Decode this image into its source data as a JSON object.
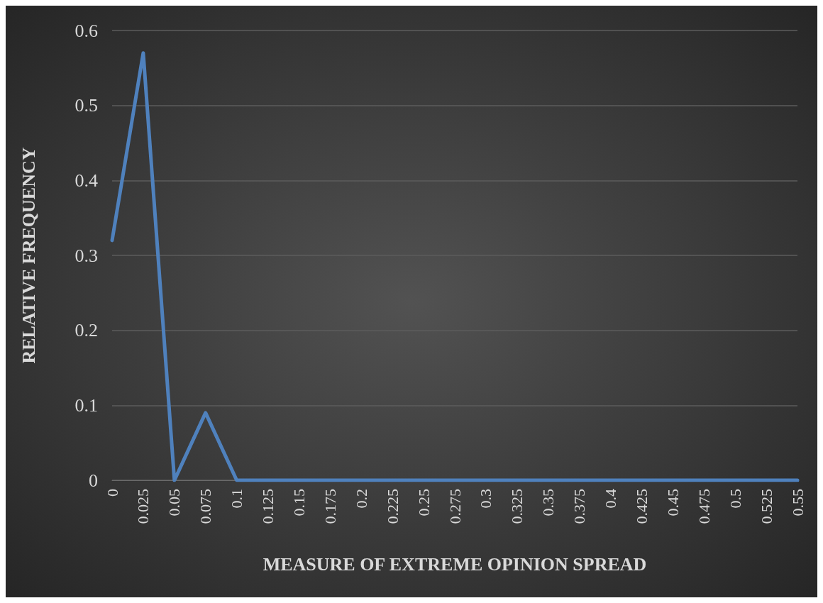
{
  "chart_data": {
    "type": "line",
    "xlabel": "MEASURE OF EXTREME OPINION SPREAD",
    "ylabel": "RELATIVE FREQUENCY",
    "categories": [
      "0",
      "0.025",
      "0.05",
      "0.075",
      "0.1",
      "0.125",
      "0.15",
      "0.175",
      "0.2",
      "0.225",
      "0.25",
      "0.275",
      "0.3",
      "0.325",
      "0.35",
      "0.375",
      "0.4",
      "0.425",
      "0.45",
      "0.475",
      "0.5",
      "0.525",
      "0.55"
    ],
    "series": [
      {
        "color": "#4f81bd",
        "values": [
          0.32,
          0.57,
          0,
          0.09,
          0,
          0,
          0,
          0,
          0,
          0,
          0,
          0,
          0,
          0,
          0,
          0,
          0,
          0,
          0,
          0,
          0,
          0,
          0
        ]
      }
    ],
    "ylim": [
      0,
      0.6
    ],
    "yticks": [
      0,
      0.1,
      0.2,
      0.3,
      0.4,
      0.5,
      0.6
    ],
    "grid": "y",
    "marker": "none",
    "line_style": "solid"
  }
}
